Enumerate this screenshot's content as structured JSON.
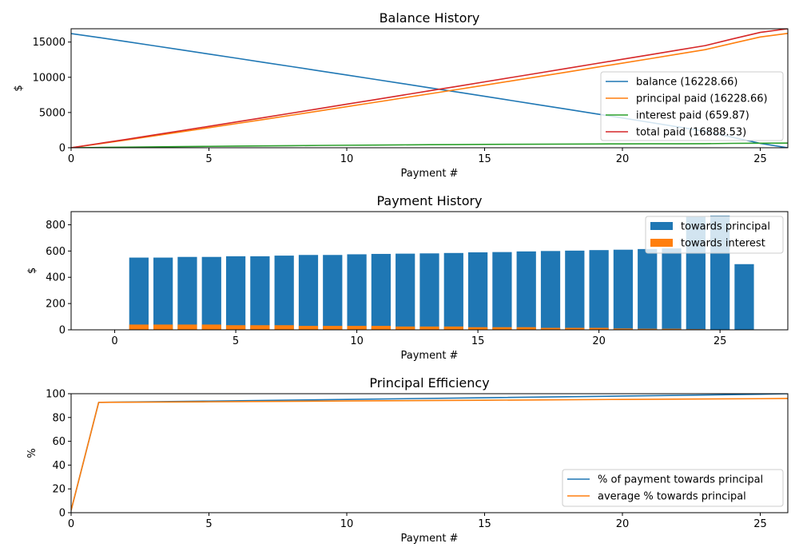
{
  "chart_data": [
    {
      "type": "line",
      "title": "Balance History",
      "xlabel": "Payment #",
      "ylabel": "$",
      "xlim": [
        0,
        26
      ],
      "ylim": [
        0,
        16888.53
      ],
      "xticks": [
        0,
        5,
        10,
        15,
        20,
        25
      ],
      "yticks": [
        0,
        5000,
        10000,
        15000
      ],
      "grid": false,
      "legend_position": "center-right",
      "x": [
        0,
        1,
        2,
        3,
        4,
        5,
        6,
        7,
        8,
        9,
        10,
        11,
        12,
        13,
        14,
        15,
        16,
        17,
        18,
        19,
        20,
        21,
        22,
        23,
        24,
        25,
        26
      ],
      "series": [
        {
          "name": "balance (16228.66)",
          "color": "#1f77b4",
          "values": [
            16200,
            15650,
            15070,
            14480,
            13890,
            13300,
            12710,
            12110,
            11520,
            10920,
            10320,
            9720,
            9120,
            8510,
            7910,
            7300,
            6690,
            6070,
            5460,
            4840,
            4220,
            3600,
            2970,
            2340,
            1480,
            620,
            0
          ]
        },
        {
          "name": "principal paid (16228.66)",
          "color": "#ff7f0e",
          "values": [
            0,
            550,
            1100,
            1680,
            2260,
            2840,
            3430,
            4020,
            4620,
            5220,
            5830,
            6430,
            7040,
            7650,
            8260,
            8880,
            9500,
            10120,
            10750,
            11380,
            12010,
            12640,
            13280,
            13920,
            14830,
            15720,
            16228.66
          ]
        },
        {
          "name": "interest paid (659.87)",
          "color": "#2ca02c",
          "values": [
            0,
            43,
            84,
            123,
            161,
            197,
            232,
            265,
            296,
            326,
            354,
            381,
            406,
            429,
            451,
            471,
            489,
            506,
            521,
            534,
            546,
            556,
            565,
            572,
            622,
            650,
            659.87
          ]
        },
        {
          "name": "total paid (16888.53)",
          "color": "#d62728",
          "values": [
            0,
            593,
            1184,
            1803,
            2421,
            3037,
            3662,
            4285,
            4916,
            5546,
            6184,
            6811,
            7446,
            8079,
            8711,
            9351,
            9989,
            10626,
            11271,
            11914,
            12556,
            13196,
            13845,
            14492,
            15452,
            16370,
            16888.53
          ]
        }
      ]
    },
    {
      "type": "bar",
      "stacked": true,
      "title": "Payment History",
      "xlabel": "Payment #",
      "ylabel": "$",
      "xlim": [
        -1.8,
        27.8
      ],
      "ylim": [
        0,
        900
      ],
      "xticks": [
        0,
        5,
        10,
        15,
        20,
        25
      ],
      "yticks": [
        0,
        200,
        400,
        600,
        800
      ],
      "grid": false,
      "legend_position": "top-right",
      "categories": [
        1,
        2,
        3,
        4,
        5,
        6,
        7,
        8,
        9,
        10,
        11,
        12,
        13,
        14,
        15,
        16,
        17,
        18,
        19,
        20,
        21,
        22,
        23,
        24,
        25,
        26
      ],
      "series": [
        {
          "name": "towards principal",
          "color": "#1f77b4",
          "values": [
            550,
            550,
            555,
            555,
            560,
            560,
            565,
            570,
            570,
            575,
            578,
            580,
            582,
            585,
            590,
            592,
            597,
            600,
            603,
            607,
            610,
            615,
            620,
            860,
            870,
            500
          ]
        },
        {
          "name": "towards interest",
          "color": "#ff7f0e",
          "values": [
            40,
            40,
            40,
            40,
            35,
            35,
            35,
            30,
            30,
            30,
            30,
            25,
            25,
            25,
            20,
            20,
            20,
            15,
            15,
            15,
            10,
            8,
            8,
            5,
            3,
            0
          ]
        }
      ]
    },
    {
      "type": "line",
      "title": "Principal Efficiency",
      "xlabel": "Payment #",
      "ylabel": "%",
      "xlim": [
        0,
        26
      ],
      "ylim": [
        0,
        100
      ],
      "xticks": [
        0,
        5,
        10,
        15,
        20,
        25
      ],
      "yticks": [
        0,
        20,
        40,
        60,
        80,
        100
      ],
      "grid": false,
      "legend_position": "lower-right",
      "x": [
        0,
        1,
        5,
        10,
        15,
        20,
        25,
        26
      ],
      "series": [
        {
          "name": "% of payment towards principal",
          "color": "#1f77b4",
          "values": [
            2,
            92.7,
            93.8,
            95.2,
            96.6,
            98.0,
            99.5,
            100
          ]
        },
        {
          "name": "average % towards principal",
          "color": "#ff7f0e",
          "values": [
            2,
            92.7,
            93.2,
            93.9,
            94.5,
            95.2,
            95.8,
            96
          ]
        }
      ]
    }
  ]
}
